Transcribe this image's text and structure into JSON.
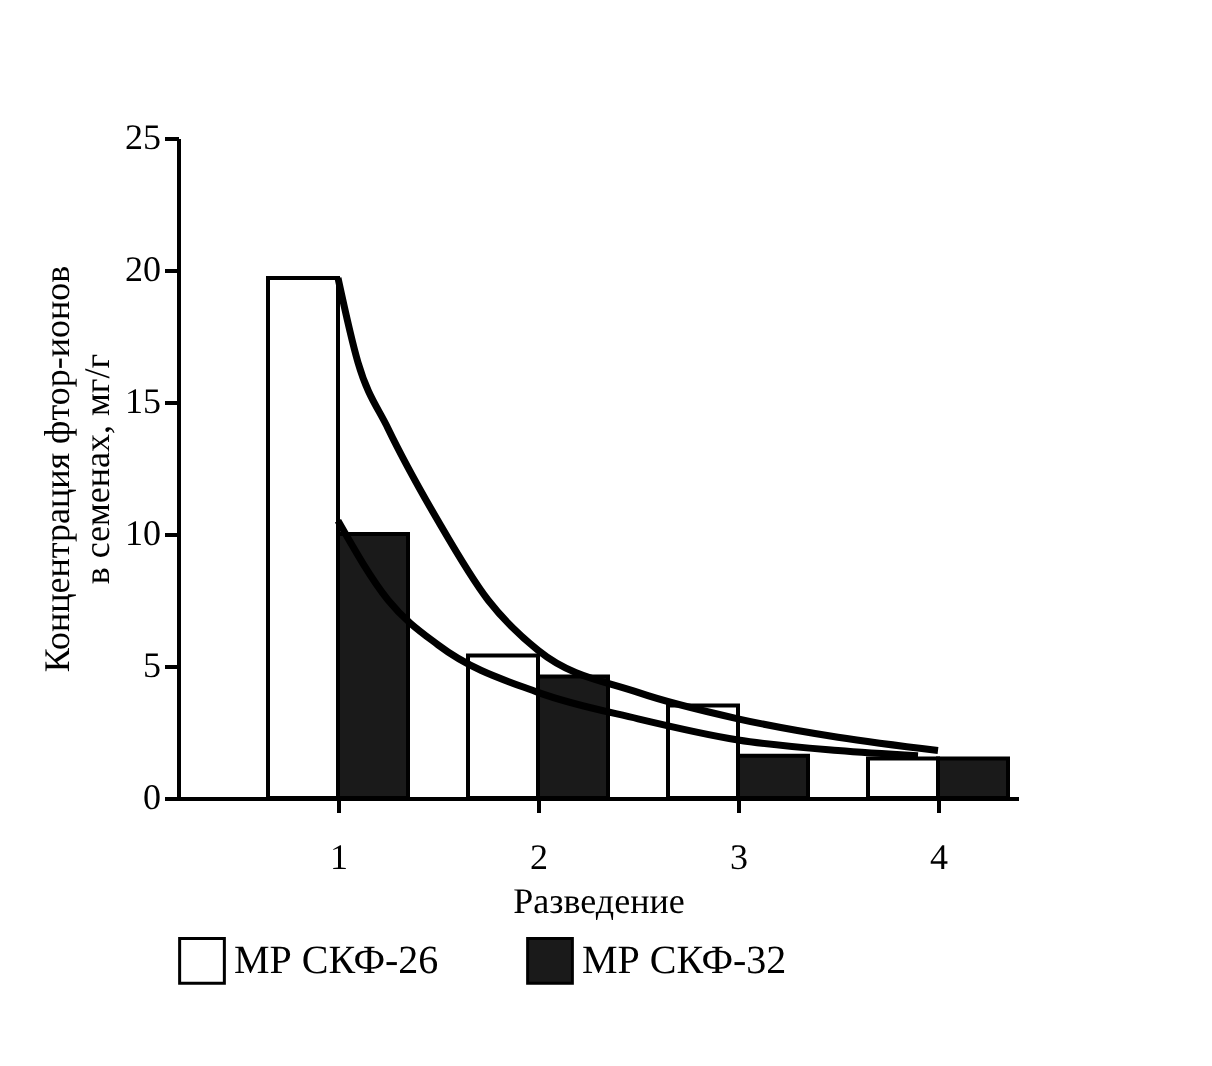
{
  "chart_data": {
    "type": "bar",
    "xlabel": "Разведение",
    "ylabel": "Концентрация фтор-ионов\nв семенах, мг/г",
    "x": [
      1,
      2,
      3,
      4
    ],
    "xlim": [
      0.2,
      4.4
    ],
    "xticks": [
      1,
      2,
      3,
      4
    ],
    "ylim": [
      0,
      25
    ],
    "yticks": [
      0,
      5,
      10,
      15,
      20,
      25
    ],
    "grid": false,
    "legend": "bottom",
    "series": [
      {
        "name": "МР СКФ-26",
        "color": "#ffffff",
        "values": [
          19.7,
          5.4,
          3.5,
          1.5
        ]
      },
      {
        "name": "МР СКФ-32",
        "color": "#1a1a1a",
        "values": [
          10,
          4.6,
          1.6,
          1.5
        ]
      },
      {
        "type": "line",
        "color": "#000000",
        "x": [
          1,
          1.1,
          1.25,
          1.5,
          1.75,
          2,
          2.5,
          3,
          3.5,
          4
        ],
        "values": [
          19.7,
          16.5,
          14,
          10.5,
          7.5,
          5.6,
          4.0,
          3.0,
          2.3,
          1.8
        ]
      },
      {
        "type": "line",
        "color": "#000000",
        "x": [
          1,
          1.25,
          1.5,
          2,
          2.5,
          3,
          3.5,
          3.9
        ],
        "values": [
          10.5,
          7.5,
          5.8,
          4.0,
          3.0,
          2.2,
          1.8,
          1.6
        ]
      }
    ]
  }
}
